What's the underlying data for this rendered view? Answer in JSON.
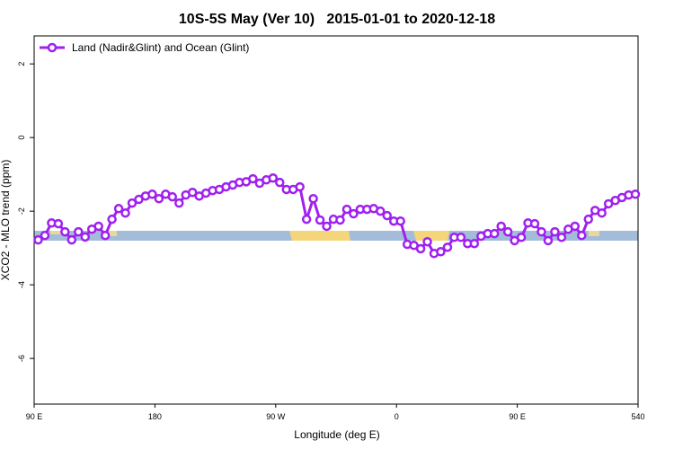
{
  "chart_data": {
    "type": "line",
    "title": "10S-5S May (Ver 10)   2015-01-01 to 2020-12-18",
    "x_label": "Longitude (deg E)",
    "y_label": "XCO2 - MLO trend (ppm)",
    "xlim": [
      90,
      540
    ],
    "xticks": [
      {
        "value": 90,
        "label": "90 E"
      },
      180,
      {
        "value": 270,
        "label": "90 W"
      },
      {
        "value": 360,
        "label": "0"
      },
      {
        "value": 450,
        "label": "90 E"
      },
      540
    ],
    "ylim": [
      -7.24,
      2.76
    ],
    "yticks": [
      -6,
      -4,
      -2,
      0,
      2
    ],
    "legend": "top-left",
    "x": [
      93,
      98,
      103,
      108,
      113,
      118,
      123,
      128,
      133,
      138,
      143,
      148,
      153,
      158,
      163,
      168,
      173,
      178,
      183,
      188,
      193,
      198,
      203,
      208,
      213,
      218,
      223,
      228,
      233,
      238,
      243,
      248,
      253,
      258,
      263,
      268,
      273,
      278,
      283,
      288,
      293,
      298,
      303,
      308,
      313,
      318,
      323,
      328,
      333,
      338,
      343,
      348,
      353,
      358,
      363,
      368,
      373,
      378,
      383,
      388,
      393,
      398,
      403,
      408,
      413,
      418,
      423,
      428,
      433,
      438,
      443,
      448,
      453,
      458,
      463,
      468,
      473,
      478,
      483,
      488,
      493,
      498,
      503,
      508,
      513,
      518,
      523,
      528,
      533,
      538
    ],
    "series": [
      {
        "name": "Land (Nadir&Glint) and Ocean (Glint)",
        "color": "#a020f0",
        "values": [
          -2.78,
          -2.66,
          -2.32,
          -2.34,
          -2.56,
          -2.78,
          -2.56,
          -2.7,
          -2.49,
          -2.41,
          -2.66,
          -2.22,
          -1.93,
          -2.05,
          -1.78,
          -1.68,
          -1.59,
          -1.54,
          -1.66,
          -1.54,
          -1.61,
          -1.78,
          -1.56,
          -1.49,
          -1.59,
          -1.51,
          -1.44,
          -1.41,
          -1.34,
          -1.29,
          -1.22,
          -1.2,
          -1.12,
          -1.24,
          -1.15,
          -1.1,
          -1.22,
          -1.41,
          -1.41,
          -1.34,
          -2.22,
          -1.66,
          -2.24,
          -2.41,
          -2.22,
          -2.24,
          -1.95,
          -2.07,
          -1.95,
          -1.95,
          -1.93,
          -2.0,
          -2.12,
          -2.27,
          -2.27,
          -2.9,
          -2.93,
          -3.02,
          -2.83,
          -3.15,
          -3.1,
          -2.98,
          -2.71,
          -2.71,
          -2.88,
          -2.88,
          -2.68,
          -2.61,
          -2.61,
          -2.41,
          -2.56,
          -2.8,
          -2.71,
          -2.32,
          -2.34,
          -2.56,
          -2.8,
          -2.56,
          -2.71,
          -2.49,
          -2.41,
          -2.66,
          -2.22,
          -1.98,
          -2.05,
          -1.8,
          -1.71,
          -1.63,
          -1.56,
          -1.54
        ]
      }
    ]
  }
}
